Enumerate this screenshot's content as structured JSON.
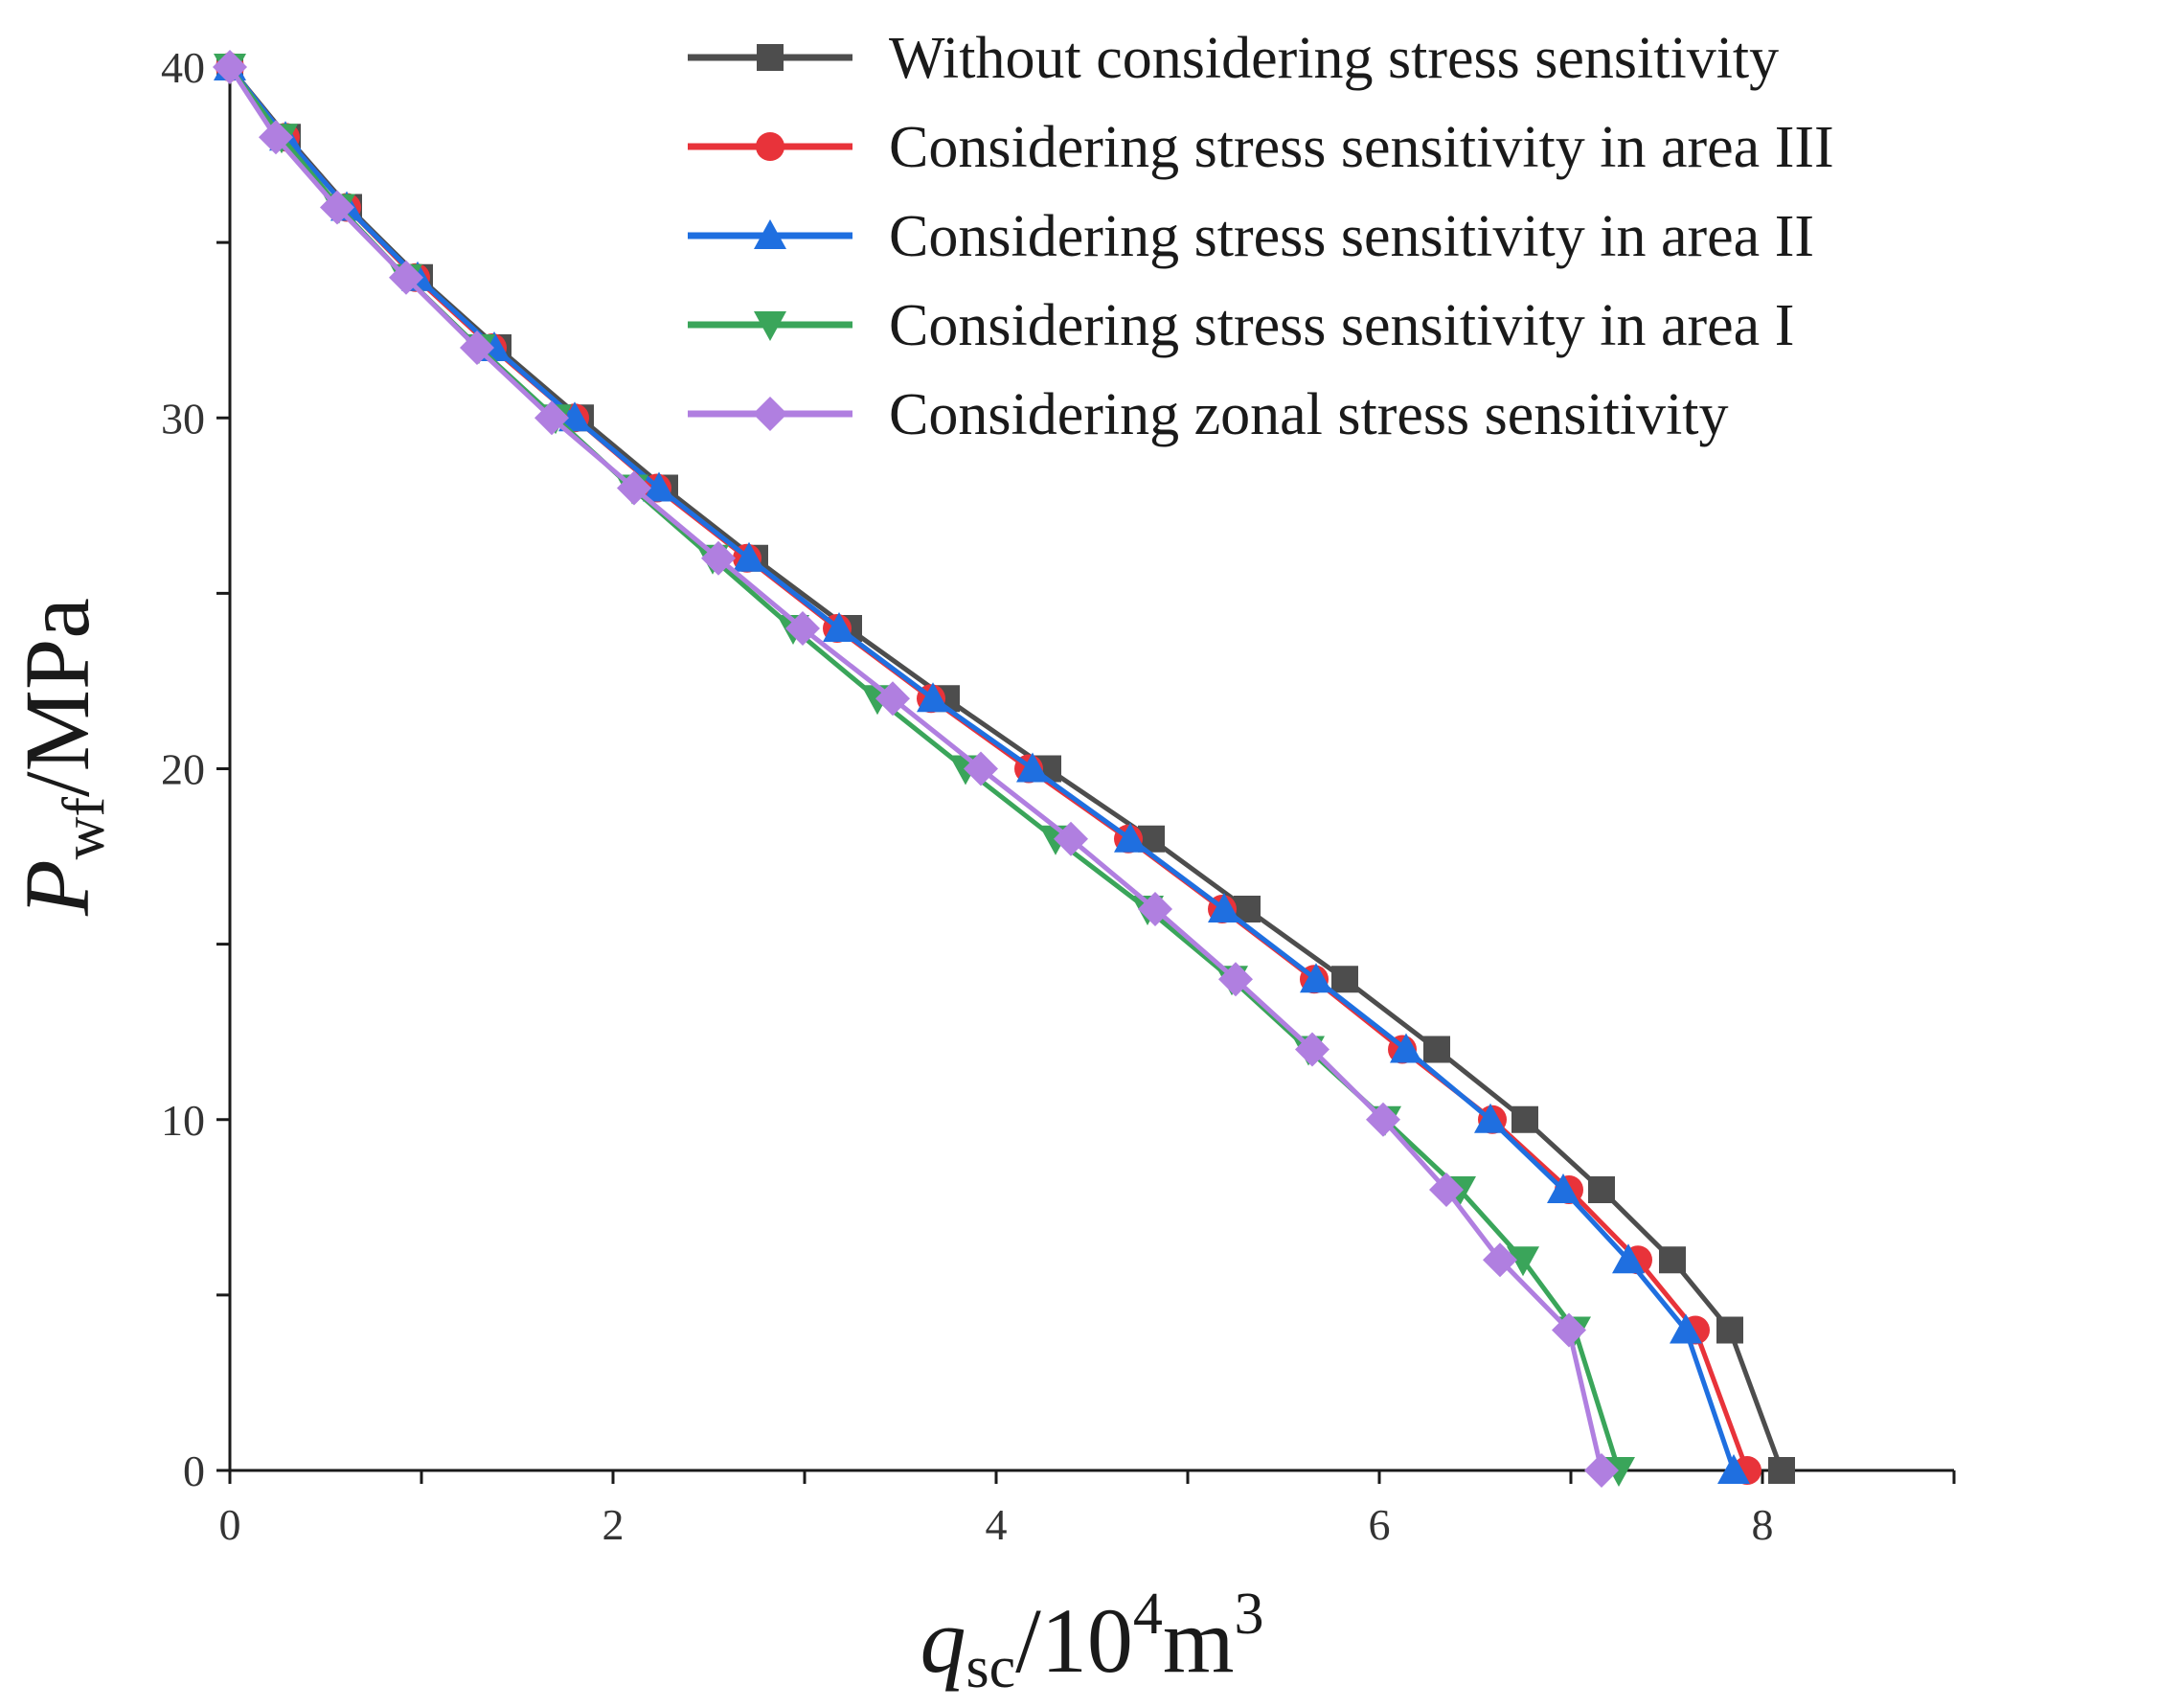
{
  "chart_data": {
    "type": "line",
    "title": "",
    "xlabel": {
      "var": "q",
      "sub": "sc",
      "unit_prefix": "/10",
      "unit_sup": "4",
      "unit_base": "m",
      "unit_sup2": "3"
    },
    "ylabel": {
      "var": "P",
      "sub": "wf",
      "unit": "/MPa"
    },
    "xlim": [
      0,
      9
    ],
    "ylim": [
      0,
      40
    ],
    "xticks": [
      0,
      2,
      4,
      6,
      8
    ],
    "yticks": [
      0,
      10,
      20,
      30,
      40
    ],
    "x_minor_step": 1,
    "y_minor_step": 5,
    "grid": false,
    "legend_position": "top-right",
    "series": [
      {
        "name": "Without considering stress sensitivity",
        "color": "#4d4d4d",
        "marker": "square",
        "x": [
          0,
          0.3,
          0.62,
          0.99,
          1.4,
          1.83,
          2.27,
          2.74,
          3.23,
          3.74,
          4.27,
          4.81,
          5.31,
          5.82,
          6.3,
          6.76,
          7.16,
          7.53,
          7.83,
          8.1
        ],
        "y": [
          40,
          38,
          36,
          34,
          32,
          30,
          28,
          26,
          24,
          22,
          20,
          18,
          16,
          14,
          12,
          10,
          8,
          6,
          4,
          0
        ]
      },
      {
        "name": "Considering stress sensitivity in area III",
        "color": "#e8333a",
        "marker": "circle",
        "x": [
          0,
          0.29,
          0.61,
          0.97,
          1.37,
          1.8,
          2.23,
          2.7,
          3.17,
          3.66,
          4.17,
          4.69,
          5.18,
          5.66,
          6.12,
          6.59,
          6.99,
          7.35,
          7.65,
          7.92
        ],
        "y": [
          40,
          38,
          36,
          34,
          32,
          30,
          28,
          26,
          24,
          22,
          20,
          18,
          16,
          14,
          12,
          10,
          8,
          6,
          4,
          0
        ]
      },
      {
        "name": "Considering stress sensitivity in area II",
        "color": "#1f6fe0",
        "marker": "triangle-up",
        "x": [
          0,
          0.29,
          0.61,
          0.98,
          1.38,
          1.8,
          2.24,
          2.71,
          3.18,
          3.67,
          4.19,
          4.7,
          5.19,
          5.67,
          6.14,
          6.58,
          6.96,
          7.3,
          7.6,
          7.85
        ],
        "y": [
          40,
          38,
          36,
          34,
          32,
          30,
          28,
          26,
          24,
          22,
          20,
          18,
          16,
          14,
          12,
          10,
          8,
          6,
          4,
          0
        ]
      },
      {
        "name": "Considering stress sensitivity in area I",
        "color": "#3aa55a",
        "marker": "triangle-down",
        "x": [
          0,
          0.27,
          0.57,
          0.92,
          1.3,
          1.7,
          2.1,
          2.52,
          2.94,
          3.38,
          3.84,
          4.31,
          4.79,
          5.23,
          5.63,
          6.03,
          6.42,
          6.75,
          7.02,
          7.25
        ],
        "y": [
          40,
          38,
          36,
          34,
          32,
          30,
          28,
          26,
          24,
          22,
          20,
          18,
          16,
          14,
          12,
          10,
          8,
          6,
          4,
          0
        ]
      },
      {
        "name": "Considering zonal stress sensitivity",
        "color": "#b07fe0",
        "marker": "diamond",
        "x": [
          0,
          0.24,
          0.56,
          0.92,
          1.29,
          1.68,
          2.11,
          2.55,
          2.99,
          3.46,
          3.92,
          4.39,
          4.83,
          5.25,
          5.65,
          6.02,
          6.35,
          6.63,
          6.99,
          7.16
        ],
        "y": [
          40,
          38,
          36,
          34,
          32,
          30,
          28,
          26,
          24,
          22,
          20,
          18,
          16,
          14,
          12,
          10,
          8,
          6,
          4,
          0
        ]
      }
    ]
  }
}
